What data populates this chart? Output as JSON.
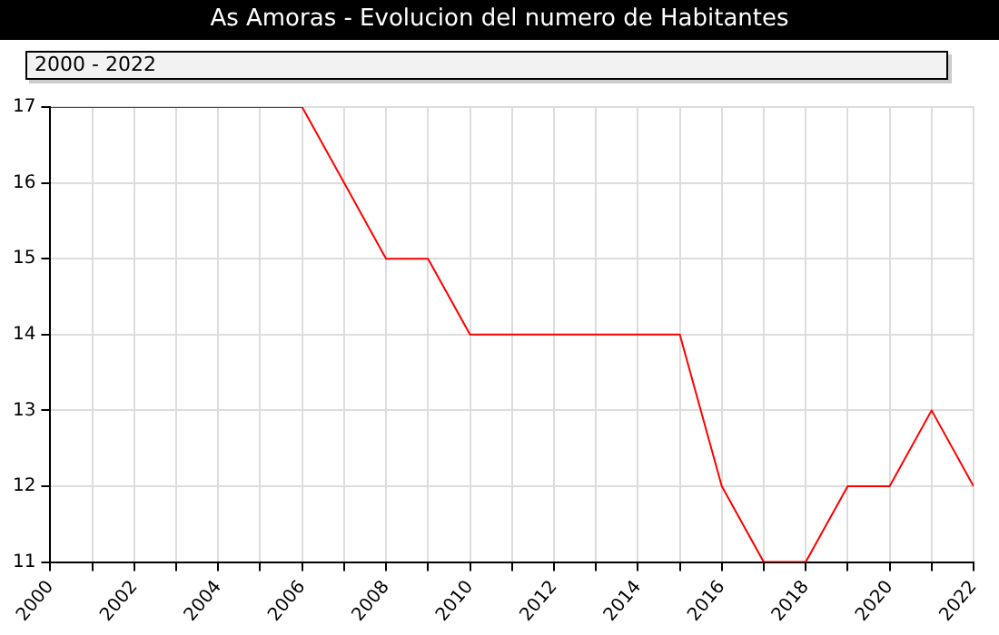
{
  "chart_data": {
    "type": "line",
    "title": "As Amoras - Evolucion del numero de Habitantes",
    "subtitle": "2000 - 2022",
    "x": [
      2000,
      2001,
      2002,
      2003,
      2004,
      2005,
      2006,
      2007,
      2008,
      2009,
      2010,
      2011,
      2012,
      2013,
      2014,
      2015,
      2016,
      2017,
      2018,
      2019,
      2020,
      2021,
      2022
    ],
    "series": [
      {
        "color": "#ff0000",
        "values": [
          17,
          17,
          17,
          17,
          17,
          17,
          17,
          16,
          15,
          15,
          14,
          14,
          14,
          14,
          14,
          14,
          12,
          11,
          11,
          12,
          12,
          13,
          12
        ]
      }
    ],
    "xlim": [
      2000,
      2022
    ],
    "xticks": [
      2000,
      {
        "value": 2001,
        "label": null
      },
      2002,
      {
        "value": 2003,
        "label": null
      },
      2004,
      {
        "value": 2005,
        "label": null
      },
      2006,
      {
        "value": 2007,
        "label": null
      },
      2008,
      {
        "value": 2009,
        "label": null
      },
      2010,
      {
        "value": 2011,
        "label": null
      },
      2012,
      {
        "value": 2013,
        "label": null
      },
      2014,
      {
        "value": 2015,
        "label": null
      },
      2016,
      {
        "value": 2017,
        "label": null
      },
      2018,
      {
        "value": 2019,
        "label": null
      },
      2020,
      {
        "value": 2021,
        "label": null
      },
      2022
    ],
    "ylim": [
      11,
      17
    ],
    "yticks": [
      11,
      12,
      13,
      14,
      15,
      16,
      17
    ],
    "grid": true,
    "legend": false,
    "marker": "none",
    "line_style": "solid"
  }
}
